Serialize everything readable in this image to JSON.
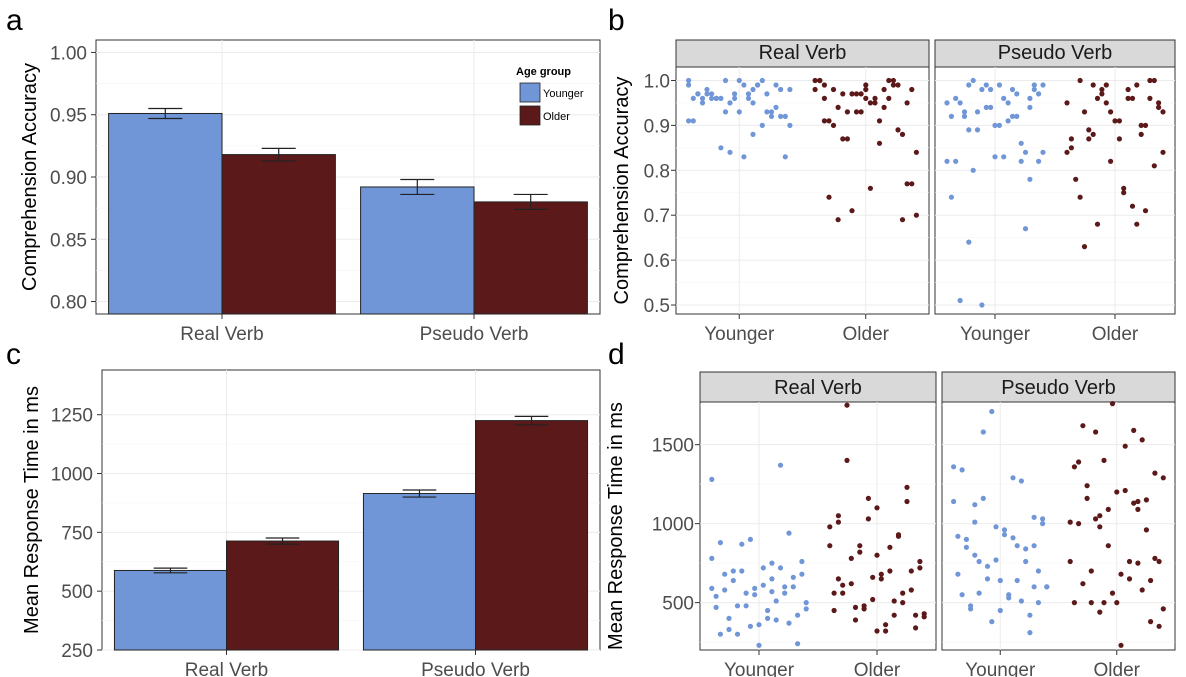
{
  "colors": {
    "younger": "#7096d7",
    "older": "#5c1919"
  },
  "legend": {
    "title": "Age group",
    "items": [
      "Younger",
      "Older"
    ]
  },
  "chart_data": [
    {
      "panel": "a",
      "type": "bar",
      "categories": [
        "Real Verb",
        "Pseudo Verb"
      ],
      "series": [
        {
          "name": "Younger",
          "values": [
            0.951,
            0.892
          ],
          "errors": [
            0.004,
            0.006
          ]
        },
        {
          "name": "Older",
          "values": [
            0.918,
            0.88
          ],
          "errors": [
            0.005,
            0.006
          ]
        }
      ],
      "ylabel": "Comprehension Accuracy",
      "ylim": [
        0.79,
        1.01
      ],
      "yticks": [
        "0.80",
        "0.85",
        "0.90",
        "0.95",
        "1.00"
      ],
      "legend_position": "top-right"
    },
    {
      "panel": "b",
      "type": "scatter",
      "facets": [
        "Real Verb",
        "Pseudo Verb"
      ],
      "groups": [
        "Younger",
        "Older"
      ],
      "ylabel": "Comprehension Accuracy",
      "ylim": [
        0.48,
        1.03
      ],
      "yticks": [
        "0.5",
        "0.6",
        "0.7",
        "0.8",
        "0.9",
        "1.0"
      ],
      "points": {
        "Real Verb": {
          "Younger": [
            1.0,
            0.98,
            0.96,
            0.99,
            0.97,
            0.96,
            0.99,
            0.96,
            0.98,
            0.93,
            0.97,
            1.0,
            0.96,
            0.92,
            0.99,
            0.95,
            0.97,
            0.93,
            0.9,
            0.96,
            0.98,
            0.93,
            0.95,
            0.91,
            0.88,
            0.97,
            0.94,
            0.96,
            0.91,
            0.99,
            0.96,
            0.92,
            1.0,
            0.97,
            0.9,
            0.85,
            0.83,
            0.83,
            0.96,
            0.93,
            1.0,
            0.98,
            0.97,
            0.97,
            0.92,
            0.84,
            0.99,
            0.95
          ],
          "Older": [
            0.99,
            0.96,
            1.0,
            0.93,
            0.98,
            0.95,
            0.91,
            1.0,
            0.97,
            0.84,
            0.95,
            0.98,
            0.99,
            0.93,
            1.0,
            0.91,
            0.69,
            0.69,
            0.97,
            1.0,
            0.94,
            0.87,
            0.95,
            0.98,
            0.91,
            0.96,
            0.87,
            0.77,
            0.76,
            0.74,
            0.99,
            0.71,
            0.7,
            0.96,
            0.9,
            0.89,
            0.97,
            0.98,
            0.86,
            0.94,
            0.88,
            0.93,
            1.0,
            0.98,
            0.97,
            0.77,
            0.96,
            0.99
          ]
        },
        "Pseudo Verb": {
          "Younger": [
            0.99,
            0.96,
            0.94,
            0.92,
            0.98,
            1.0,
            0.98,
            0.83,
            0.96,
            0.92,
            0.89,
            0.82,
            0.99,
            0.51,
            0.82,
            0.98,
            0.84,
            0.83,
            0.92,
            0.67,
            0.99,
            0.82,
            0.95,
            0.64,
            0.78,
            0.98,
            0.74,
            0.92,
            0.8,
            0.99,
            0.9,
            0.82,
            0.97,
            0.93,
            0.97,
            0.9,
            0.95,
            0.86,
            0.5,
            0.99,
            0.96,
            0.93,
            0.84,
            0.94,
            0.95,
            0.91,
            0.89,
            0.94
          ],
          "Older": [
            0.99,
            0.96,
            0.94,
            0.91,
            1.0,
            0.88,
            0.97,
            0.93,
            0.75,
            0.63,
            0.9,
            0.99,
            0.95,
            0.98,
            0.87,
            1.0,
            0.93,
            0.87,
            0.96,
            0.99,
            1.0,
            0.91,
            0.78,
            0.68,
            0.68,
            0.95,
            0.87,
            0.74,
            0.9,
            0.98,
            0.84,
            0.76,
            0.93,
            0.71,
            0.95,
            0.84,
            0.96,
            0.89,
            0.96,
            0.82,
            0.85,
            0.72,
            0.88,
            0.81
          ]
        }
      }
    },
    {
      "panel": "c",
      "type": "bar",
      "categories": [
        "Real Verb",
        "Pseudo Verb"
      ],
      "series": [
        {
          "name": "Younger",
          "values": [
            588,
            915
          ],
          "errors": [
            10,
            15
          ]
        },
        {
          "name": "Older",
          "values": [
            713,
            1225
          ],
          "errors": [
            13,
            18
          ]
        }
      ],
      "ylabel": "Mean Response Time in ms",
      "ylim": [
        250,
        1440
      ],
      "yticks": [
        "250",
        "500",
        "750",
        "1000",
        "1250"
      ]
    },
    {
      "panel": "d",
      "type": "scatter",
      "facets": [
        "Real Verb",
        "Pseudo Verb"
      ],
      "groups": [
        "Younger",
        "Older"
      ],
      "ylabel": "Mean Response Time in ms",
      "ylim": [
        200,
        1770
      ],
      "yticks": [
        "500",
        "1000",
        "1500"
      ],
      "points": {
        "Real Verb": {
          "Younger": [
            1280,
            650,
            640,
            600,
            550,
            470,
            390,
            300,
            240,
            230,
            880,
            720,
            700,
            680,
            610,
            580,
            560,
            480,
            460,
            400,
            330,
            940,
            900,
            780,
            750,
            700,
            660,
            590,
            540,
            510,
            480,
            420,
            360,
            300,
            1370,
            870,
            760,
            720,
            680,
            600,
            560,
            500,
            450,
            400,
            370,
            350,
            590,
            570
          ],
          "Older": [
            1100,
            1050,
            920,
            820,
            720,
            650,
            560,
            500,
            460,
            430,
            320,
            1750,
            1230,
            1160,
            980,
            850,
            780,
            700,
            660,
            560,
            510,
            470,
            420,
            320,
            1010,
            930,
            860,
            760,
            680,
            610,
            560,
            480,
            410,
            360,
            1400,
            1140,
            1030,
            860,
            700,
            620,
            580,
            520,
            450,
            420,
            390,
            340,
            800,
            650
          ]
        },
        "Pseudo Verb": {
          "Younger": [
            1010,
            860,
            770,
            680,
            640,
            560,
            500,
            450,
            1340,
            1270,
            1160,
            1030,
            960,
            900,
            840,
            730,
            600,
            550,
            460,
            310,
            1710,
            1360,
            1290,
            1120,
            1040,
            980,
            920,
            860,
            760,
            700,
            640,
            550,
            510,
            1580,
            1000,
            930,
            850,
            760,
            650,
            600,
            530,
            480,
            420,
            380,
            1140,
            910,
            800,
            600
          ],
          "Older": [
            1090,
            1050,
            760,
            680,
            620,
            580,
            500,
            460,
            1490,
            1240,
            1150,
            1090,
            1010,
            760,
            700,
            640,
            560,
            500,
            1590,
            1580,
            1320,
            1200,
            1000,
            750,
            440,
            350,
            230,
            1620,
            1530,
            1400,
            1290,
            1210,
            1160,
            960,
            860,
            760,
            650,
            500,
            380,
            1760,
            1360,
            1130,
            1030,
            780,
            500,
            1390,
            1140,
            980
          ]
        }
      }
    }
  ]
}
